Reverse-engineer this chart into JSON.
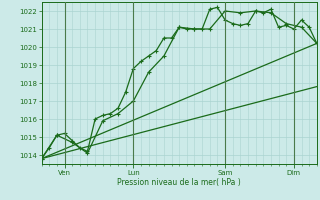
{
  "bg_color": "#cceae8",
  "grid_color": "#aad4d0",
  "line_color": "#1a6b1a",
  "marker_color": "#1a6b1a",
  "xlabel": "Pression niveau de la mer( hPa )",
  "ylim": [
    1013.5,
    1022.5
  ],
  "yticks": [
    1014,
    1015,
    1016,
    1017,
    1018,
    1019,
    1020,
    1021,
    1022
  ],
  "xlim": [
    0,
    288
  ],
  "day_positions": [
    24,
    96,
    192,
    264
  ],
  "day_labels": [
    "Ven",
    "Lun",
    "Sam",
    "Dim"
  ],
  "vline_positions": [
    24,
    96,
    192,
    264
  ],
  "series1": {
    "x": [
      0,
      8,
      16,
      24,
      32,
      40,
      48,
      56,
      64,
      72,
      80,
      88,
      96,
      104,
      112,
      120,
      128,
      136,
      144,
      152,
      160,
      168,
      176,
      184,
      192,
      200,
      208,
      216,
      224,
      232,
      240,
      248,
      256,
      264,
      272,
      280,
      288
    ],
    "y": [
      1013.8,
      1014.4,
      1015.1,
      1015.2,
      1014.8,
      1014.4,
      1014.2,
      1016.0,
      1016.2,
      1016.3,
      1016.6,
      1017.5,
      1018.8,
      1019.2,
      1019.5,
      1019.8,
      1020.5,
      1020.5,
      1021.1,
      1021.0,
      1021.0,
      1021.0,
      1022.1,
      1022.2,
      1021.5,
      1021.3,
      1021.2,
      1021.3,
      1022.0,
      1021.9,
      1022.1,
      1021.1,
      1021.2,
      1021.0,
      1021.5,
      1021.1,
      1020.2
    ]
  },
  "series2": {
    "x": [
      0,
      16,
      32,
      48,
      64,
      80,
      96,
      112,
      128,
      144,
      160,
      176,
      192,
      208,
      224,
      240,
      256,
      272,
      288
    ],
    "y": [
      1013.8,
      1015.1,
      1014.7,
      1014.1,
      1015.9,
      1016.3,
      1017.0,
      1018.6,
      1019.5,
      1021.1,
      1021.0,
      1021.0,
      1022.0,
      1021.9,
      1022.0,
      1021.9,
      1021.3,
      1021.1,
      1020.2
    ]
  },
  "series3_x": [
    0,
    288
  ],
  "series3_y": [
    1013.8,
    1020.2
  ],
  "series4_x": [
    0,
    288
  ],
  "series4_y": [
    1013.8,
    1017.8
  ]
}
